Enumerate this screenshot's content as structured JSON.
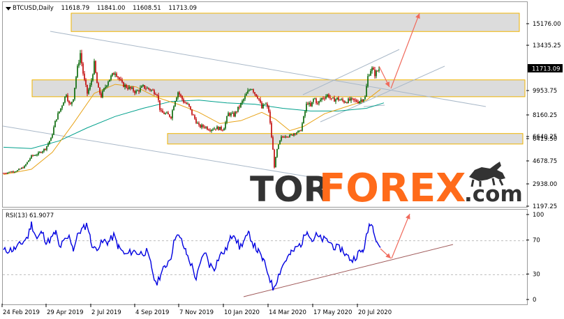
{
  "header": {
    "symbol": "BTCUSD,Daily",
    "open": "11618.79",
    "high": "11841.00",
    "low": "11608.51",
    "close": "11713.09"
  },
  "rsi_header": {
    "label": "RSI(13)",
    "value": "61.9077"
  },
  "watermark": {
    "left": "TOR",
    "right": "FOREX",
    "suffix": ".com"
  },
  "current_price_label": "11713.09",
  "colors": {
    "bull": "#006400",
    "bear": "#c00000",
    "ma_fast": "#e8a317",
    "ma_slow": "#00a08c",
    "rsi": "#0000e0",
    "channel": "#a9b8c8",
    "zone_fill": "#dcdcdc",
    "zone_border": "#f0b400",
    "arrow": "#f06b5d",
    "rsi_trend": "#a05a5a",
    "watermark_dark": "#333333",
    "watermark_orange": "#ff6b1a"
  },
  "chart_data": [
    {
      "type": "candlestick",
      "title": "BTCUSD,Daily",
      "price_ticks": [
        "15176.00",
        "13435.25",
        "11713.09",
        "9953.75",
        "8160.25",
        "6640.25",
        "6419.50",
        "4678.75",
        "2938.00",
        "1197.25"
      ],
      "price_tick_values": [
        15176.0,
        13435.25,
        11713.09,
        9953.75,
        8160.25,
        6640.25,
        6419.5,
        4678.75,
        2938.0,
        1197.25
      ],
      "x_ticks": [
        "24 Feb 2019",
        "29 Apr 2019",
        "2 Jul 2019",
        "4 Sep 2019",
        "7 Nov 2019",
        "10 Jan 2020",
        "14 Mar 2020",
        "17 May 2020",
        "20 Jul 2020"
      ],
      "ylim": [
        1197.25,
        16100
      ],
      "price_path": [
        [
          0,
          3800
        ],
        [
          20,
          4000
        ],
        [
          30,
          4300
        ],
        [
          40,
          5100
        ],
        [
          50,
          5300
        ],
        [
          60,
          5700
        ],
        [
          68,
          6500
        ],
        [
          75,
          7900
        ],
        [
          82,
          8700
        ],
        [
          90,
          9800
        ],
        [
          95,
          8800
        ],
        [
          100,
          9500
        ],
        [
          105,
          11500
        ],
        [
          110,
          12900
        ],
        [
          115,
          11000
        ],
        [
          120,
          9800
        ],
        [
          125,
          10500
        ],
        [
          130,
          12100
        ],
        [
          135,
          10200
        ],
        [
          140,
          9600
        ],
        [
          150,
          10800
        ],
        [
          160,
          11500
        ],
        [
          170,
          10500
        ],
        [
          180,
          10200
        ],
        [
          190,
          9900
        ],
        [
          200,
          10300
        ],
        [
          210,
          10100
        ],
        [
          220,
          9800
        ],
        [
          225,
          8400
        ],
        [
          232,
          8300
        ],
        [
          240,
          8100
        ],
        [
          245,
          9200
        ],
        [
          250,
          9900
        ],
        [
          258,
          9200
        ],
        [
          265,
          8900
        ],
        [
          270,
          8300
        ],
        [
          280,
          7400
        ],
        [
          288,
          7400
        ],
        [
          295,
          7200
        ],
        [
          305,
          7300
        ],
        [
          315,
          7200
        ],
        [
          322,
          8300
        ],
        [
          330,
          8200
        ],
        [
          340,
          9000
        ],
        [
          350,
          9900
        ],
        [
          355,
          10300
        ],
        [
          360,
          9800
        ],
        [
          365,
          9500
        ],
        [
          370,
          8700
        ],
        [
          375,
          9100
        ],
        [
          380,
          8500
        ],
        [
          385,
          6200
        ],
        [
          388,
          4300
        ],
        [
          392,
          5600
        ],
        [
          398,
          6600
        ],
        [
          405,
          6800
        ],
        [
          410,
          6700
        ],
        [
          418,
          7000
        ],
        [
          425,
          7000
        ],
        [
          430,
          8000
        ],
        [
          435,
          9200
        ],
        [
          440,
          8800
        ],
        [
          445,
          9500
        ],
        [
          450,
          9000
        ],
        [
          455,
          9400
        ],
        [
          465,
          9700
        ],
        [
          470,
          9300
        ],
        [
          478,
          9400
        ],
        [
          488,
          9200
        ],
        [
          498,
          9300
        ],
        [
          508,
          9200
        ],
        [
          518,
          9500
        ],
        [
          522,
          11100
        ],
        [
          527,
          11800
        ],
        [
          532,
          11300
        ],
        [
          538,
          11713
        ]
      ],
      "ma_fast": [
        [
          0,
          3700
        ],
        [
          40,
          4100
        ],
        [
          70,
          5400
        ],
        [
          100,
          7600
        ],
        [
          130,
          9800
        ],
        [
          160,
          10500
        ],
        [
          190,
          10300
        ],
        [
          220,
          9500
        ],
        [
          250,
          9000
        ],
        [
          280,
          8400
        ],
        [
          310,
          7600
        ],
        [
          340,
          7800
        ],
        [
          370,
          8400
        ],
        [
          390,
          7900
        ],
        [
          410,
          7100
        ],
        [
          430,
          7400
        ],
        [
          460,
          8300
        ],
        [
          490,
          8800
        ],
        [
          520,
          9300
        ],
        [
          540,
          10100
        ]
      ],
      "ma_slow": [
        [
          0,
          5800
        ],
        [
          40,
          5700
        ],
        [
          80,
          6300
        ],
        [
          120,
          7300
        ],
        [
          160,
          8100
        ],
        [
          200,
          8700
        ],
        [
          240,
          9200
        ],
        [
          280,
          9300
        ],
        [
          320,
          9100
        ],
        [
          360,
          9000
        ],
        [
          400,
          8700
        ],
        [
          440,
          8500
        ],
        [
          480,
          8500
        ],
        [
          520,
          8700
        ],
        [
          545,
          9100
        ]
      ]
    },
    {
      "type": "line",
      "title": "RSI(13) 61.9077",
      "y_ticks": [
        "100",
        "70",
        "30",
        "0"
      ],
      "y_tick_values": [
        100,
        70,
        30,
        0
      ],
      "ylim": [
        0,
        100
      ],
      "values": [
        [
          0,
          58
        ],
        [
          15,
          60
        ],
        [
          25,
          66
        ],
        [
          35,
          75
        ],
        [
          40,
          90
        ],
        [
          48,
          72
        ],
        [
          55,
          80
        ],
        [
          62,
          68
        ],
        [
          68,
          72
        ],
        [
          75,
          80
        ],
        [
          80,
          62
        ],
        [
          88,
          70
        ],
        [
          95,
          75
        ],
        [
          100,
          60
        ],
        [
          108,
          80
        ],
        [
          115,
          85
        ],
        [
          120,
          90
        ],
        [
          125,
          70
        ],
        [
          130,
          60
        ],
        [
          138,
          65
        ],
        [
          145,
          70
        ],
        [
          150,
          68
        ],
        [
          158,
          76
        ],
        [
          165,
          62
        ],
        [
          175,
          53
        ],
        [
          185,
          58
        ],
        [
          195,
          55
        ],
        [
          205,
          57
        ],
        [
          212,
          40
        ],
        [
          218,
          18
        ],
        [
          225,
          30
        ],
        [
          232,
          40
        ],
        [
          240,
          52
        ],
        [
          247,
          78
        ],
        [
          255,
          70
        ],
        [
          262,
          55
        ],
        [
          270,
          40
        ],
        [
          276,
          25
        ],
        [
          282,
          42
        ],
        [
          288,
          58
        ],
        [
          295,
          42
        ],
        [
          302,
          38
        ],
        [
          310,
          53
        ],
        [
          318,
          58
        ],
        [
          325,
          72
        ],
        [
          330,
          80
        ],
        [
          338,
          62
        ],
        [
          345,
          70
        ],
        [
          352,
          78
        ],
        [
          358,
          66
        ],
        [
          365,
          57
        ],
        [
          372,
          47
        ],
        [
          380,
          30
        ],
        [
          386,
          14
        ],
        [
          392,
          25
        ],
        [
          398,
          38
        ],
        [
          405,
          48
        ],
        [
          412,
          55
        ],
        [
          420,
          62
        ],
        [
          428,
          68
        ],
        [
          435,
          84
        ],
        [
          442,
          70
        ],
        [
          448,
          76
        ],
        [
          455,
          72
        ],
        [
          465,
          70
        ],
        [
          475,
          62
        ],
        [
          485,
          60
        ],
        [
          492,
          52
        ],
        [
          500,
          47
        ],
        [
          508,
          55
        ],
        [
          515,
          58
        ],
        [
          520,
          74
        ],
        [
          525,
          92
        ],
        [
          530,
          85
        ],
        [
          535,
          70
        ],
        [
          540,
          62
        ]
      ]
    }
  ]
}
